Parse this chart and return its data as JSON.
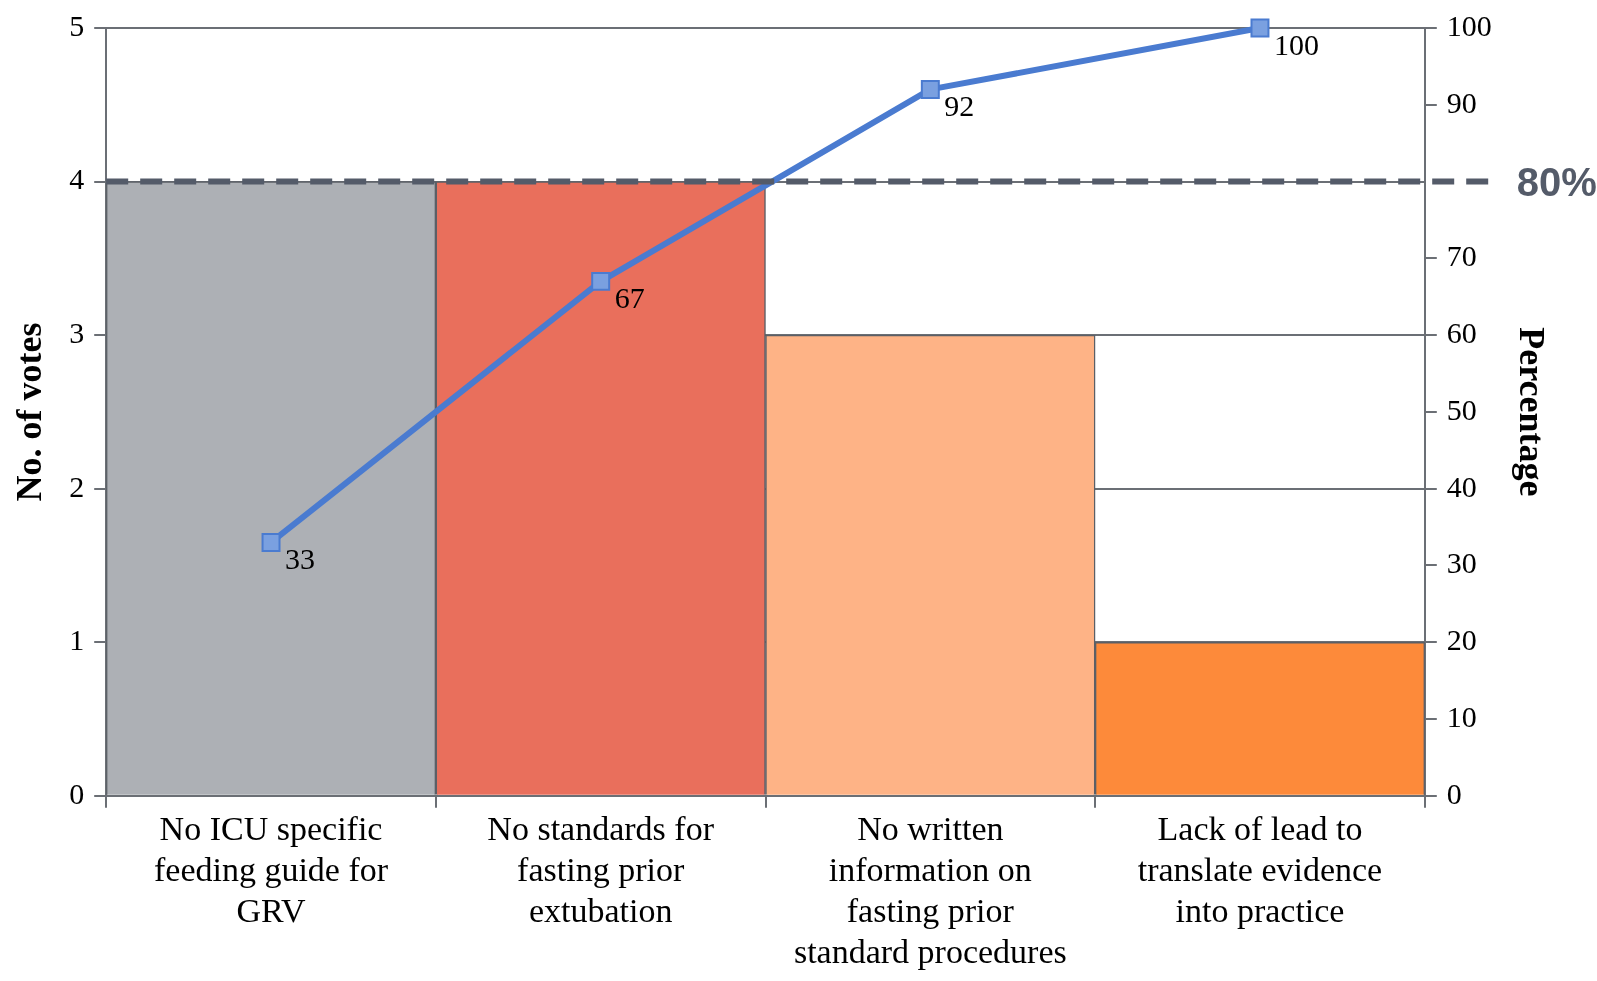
{
  "chart_data": {
    "type": "bar",
    "categories": [
      "No ICU specific feeding guide for GRV",
      "No standards for fasting prior extubation",
      "No written information on fasting prior standard procedures",
      "Lack of lead to translate evidence into practice"
    ],
    "series": [
      {
        "colors": [
          "#adb0b5",
          "#e96f5c",
          "#feb386",
          "#fd8a3a"
        ],
        "values": [
          4,
          4,
          3,
          1
        ]
      },
      {
        "type": "line",
        "axis": "y2",
        "color": "#4a7bd0",
        "values": [
          33,
          67,
          92,
          100
        ],
        "value_labels": [
          "33",
          "67",
          "92",
          "100"
        ]
      }
    ],
    "ylabel": "No. of votes",
    "y2label": "Percentage",
    "ylim": [
      0,
      5
    ],
    "yticks": [
      0,
      1,
      2,
      3,
      4,
      5
    ],
    "y2lim": [
      0,
      100
    ],
    "y2ticks": [
      0,
      10,
      20,
      30,
      40,
      50,
      60,
      70,
      90,
      100
    ],
    "ref_lines": [
      {
        "axis": "y2",
        "value": 80,
        "label": "80%",
        "color": "#545b69",
        "line_style": "dashed"
      }
    ],
    "grid": "y",
    "marker": "square"
  }
}
